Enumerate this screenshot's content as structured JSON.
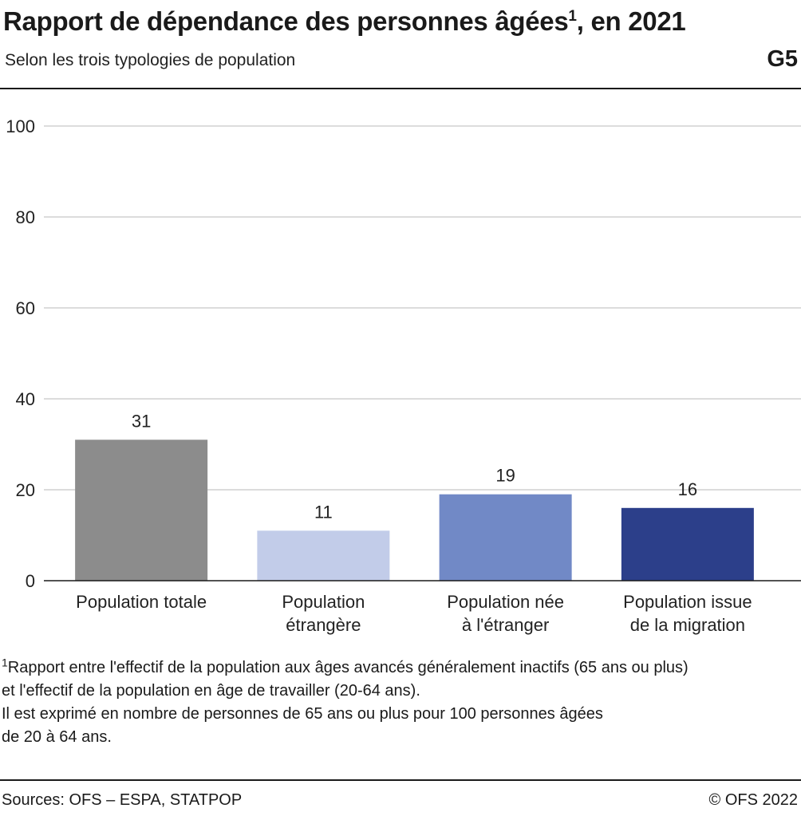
{
  "header": {
    "title": "Rapport de dépendance des personnes âgées",
    "title_sup": "1",
    "title_suffix": ", en 2021",
    "subtitle": "Selon les trois typologies de population",
    "code": "G5"
  },
  "chart_data": {
    "type": "bar",
    "title": "Rapport de dépendance des personnes âgées, en 2021",
    "subtitle": "Selon les trois typologies de population",
    "categories": [
      [
        "Population totale"
      ],
      [
        "Population",
        "étrangère"
      ],
      [
        "Population née",
        "à l'étranger"
      ],
      [
        "Population issue",
        "de la migration"
      ]
    ],
    "values": [
      31,
      11,
      19,
      16
    ],
    "colors": [
      "#8c8c8c",
      "#c2cce9",
      "#7189c6",
      "#2c3f8a"
    ],
    "ylim": [
      0,
      100
    ],
    "yticks": [
      0,
      20,
      40,
      60,
      80,
      100
    ],
    "grid": true,
    "xlabel": "",
    "ylabel": ""
  },
  "footnote": {
    "marker": "1",
    "lines": [
      "Rapport entre l'effectif de la population aux âges avancés généralement inactifs (65 ans ou plus)",
      "et l'effectif de la population en âge de travailler (20-64 ans).",
      "Il est exprimé en nombre de personnes de 65 ans ou plus pour 100 personnes âgées",
      "de 20 à 64 ans."
    ]
  },
  "footer": {
    "source": "Sources: OFS – ESPA, STATPOP",
    "copyright": "© OFS 2022"
  }
}
